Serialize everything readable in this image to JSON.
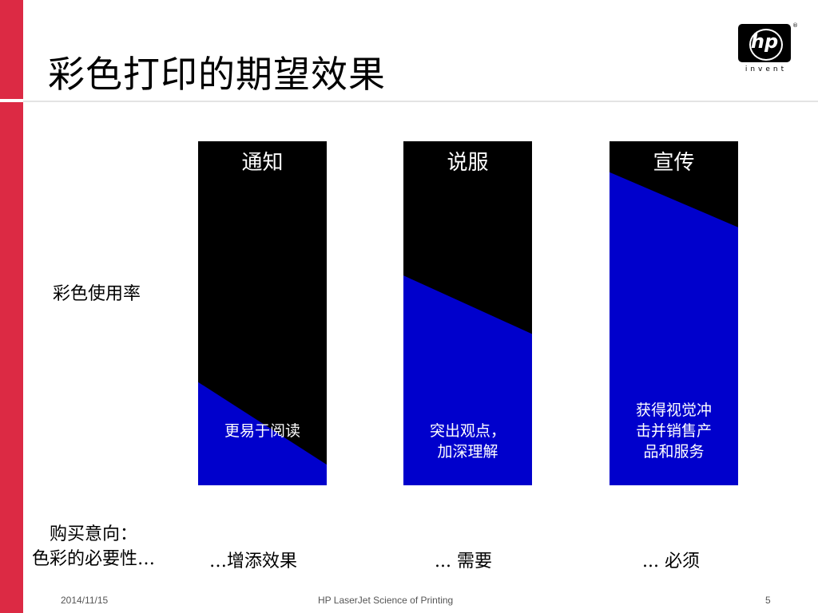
{
  "slide": {
    "title": "彩色打印的期望效果",
    "y_label": "彩色使用率",
    "bottom_label_line1": "购买意向：",
    "bottom_label_line2": "色彩的必要性…"
  },
  "logo": {
    "brand": "hp",
    "tagline": "invent",
    "registered": "®"
  },
  "colors": {
    "accent_red": "#dc2a44",
    "panel_top": "#000000",
    "panel_fill": "#0000cc"
  },
  "chart_data": {
    "type": "diagram",
    "fill_meaning": "彩色使用率",
    "panels": [
      {
        "heading": "通知",
        "body_lines": [
          "更易于阅读"
        ],
        "bottom_text": "…增添效果",
        "fill_start": 0.3,
        "fill_end": 0.06
      },
      {
        "heading": "说服",
        "body_lines": [
          "突出观点，",
          "加深理解"
        ],
        "bottom_text": "... 需要",
        "fill_start": 0.61,
        "fill_end": 0.44
      },
      {
        "heading": "宣传",
        "body_lines": [
          "获得视觉冲",
          "击并销售产",
          "品和服务"
        ],
        "bottom_text": "... 必须",
        "fill_start": 0.91,
        "fill_end": 0.75
      }
    ]
  },
  "footer": {
    "date": "2014/11/15",
    "center": "HP LaserJet Science of Printing",
    "page": "5"
  }
}
